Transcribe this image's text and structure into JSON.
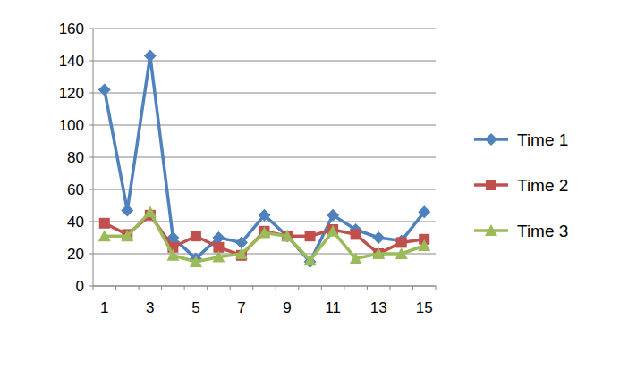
{
  "chart_data": {
    "type": "line",
    "categories": [
      "1",
      null,
      "3",
      null,
      "5",
      null,
      "7",
      null,
      "9",
      null,
      "11",
      null,
      "13",
      null,
      "15"
    ],
    "series": [
      {
        "name": "Time 1",
        "color": "#4f81bd",
        "marker": "diamond",
        "line_style": "solid",
        "values": [
          122,
          47,
          143,
          30,
          17,
          30,
          27,
          44,
          31,
          15,
          44,
          35,
          30,
          28,
          46
        ]
      },
      {
        "name": "Time 2",
        "color": "#c0504d",
        "marker": "square",
        "line_style": "solid",
        "values": [
          39,
          32,
          44,
          24,
          31,
          24,
          19,
          34,
          31,
          31,
          35,
          32,
          20,
          27,
          29
        ]
      },
      {
        "name": "Time 3",
        "color": "#9bbb59",
        "marker": "triangle",
        "line_style": "solid",
        "values": [
          31,
          31,
          46,
          19,
          15,
          18,
          20,
          33,
          31,
          16,
          34,
          17,
          20,
          20,
          25
        ]
      }
    ],
    "ylim": [
      0,
      160
    ],
    "yticks": [
      0,
      20,
      40,
      60,
      80,
      100,
      120,
      140,
      160
    ],
    "grid": true,
    "legend": "right"
  }
}
